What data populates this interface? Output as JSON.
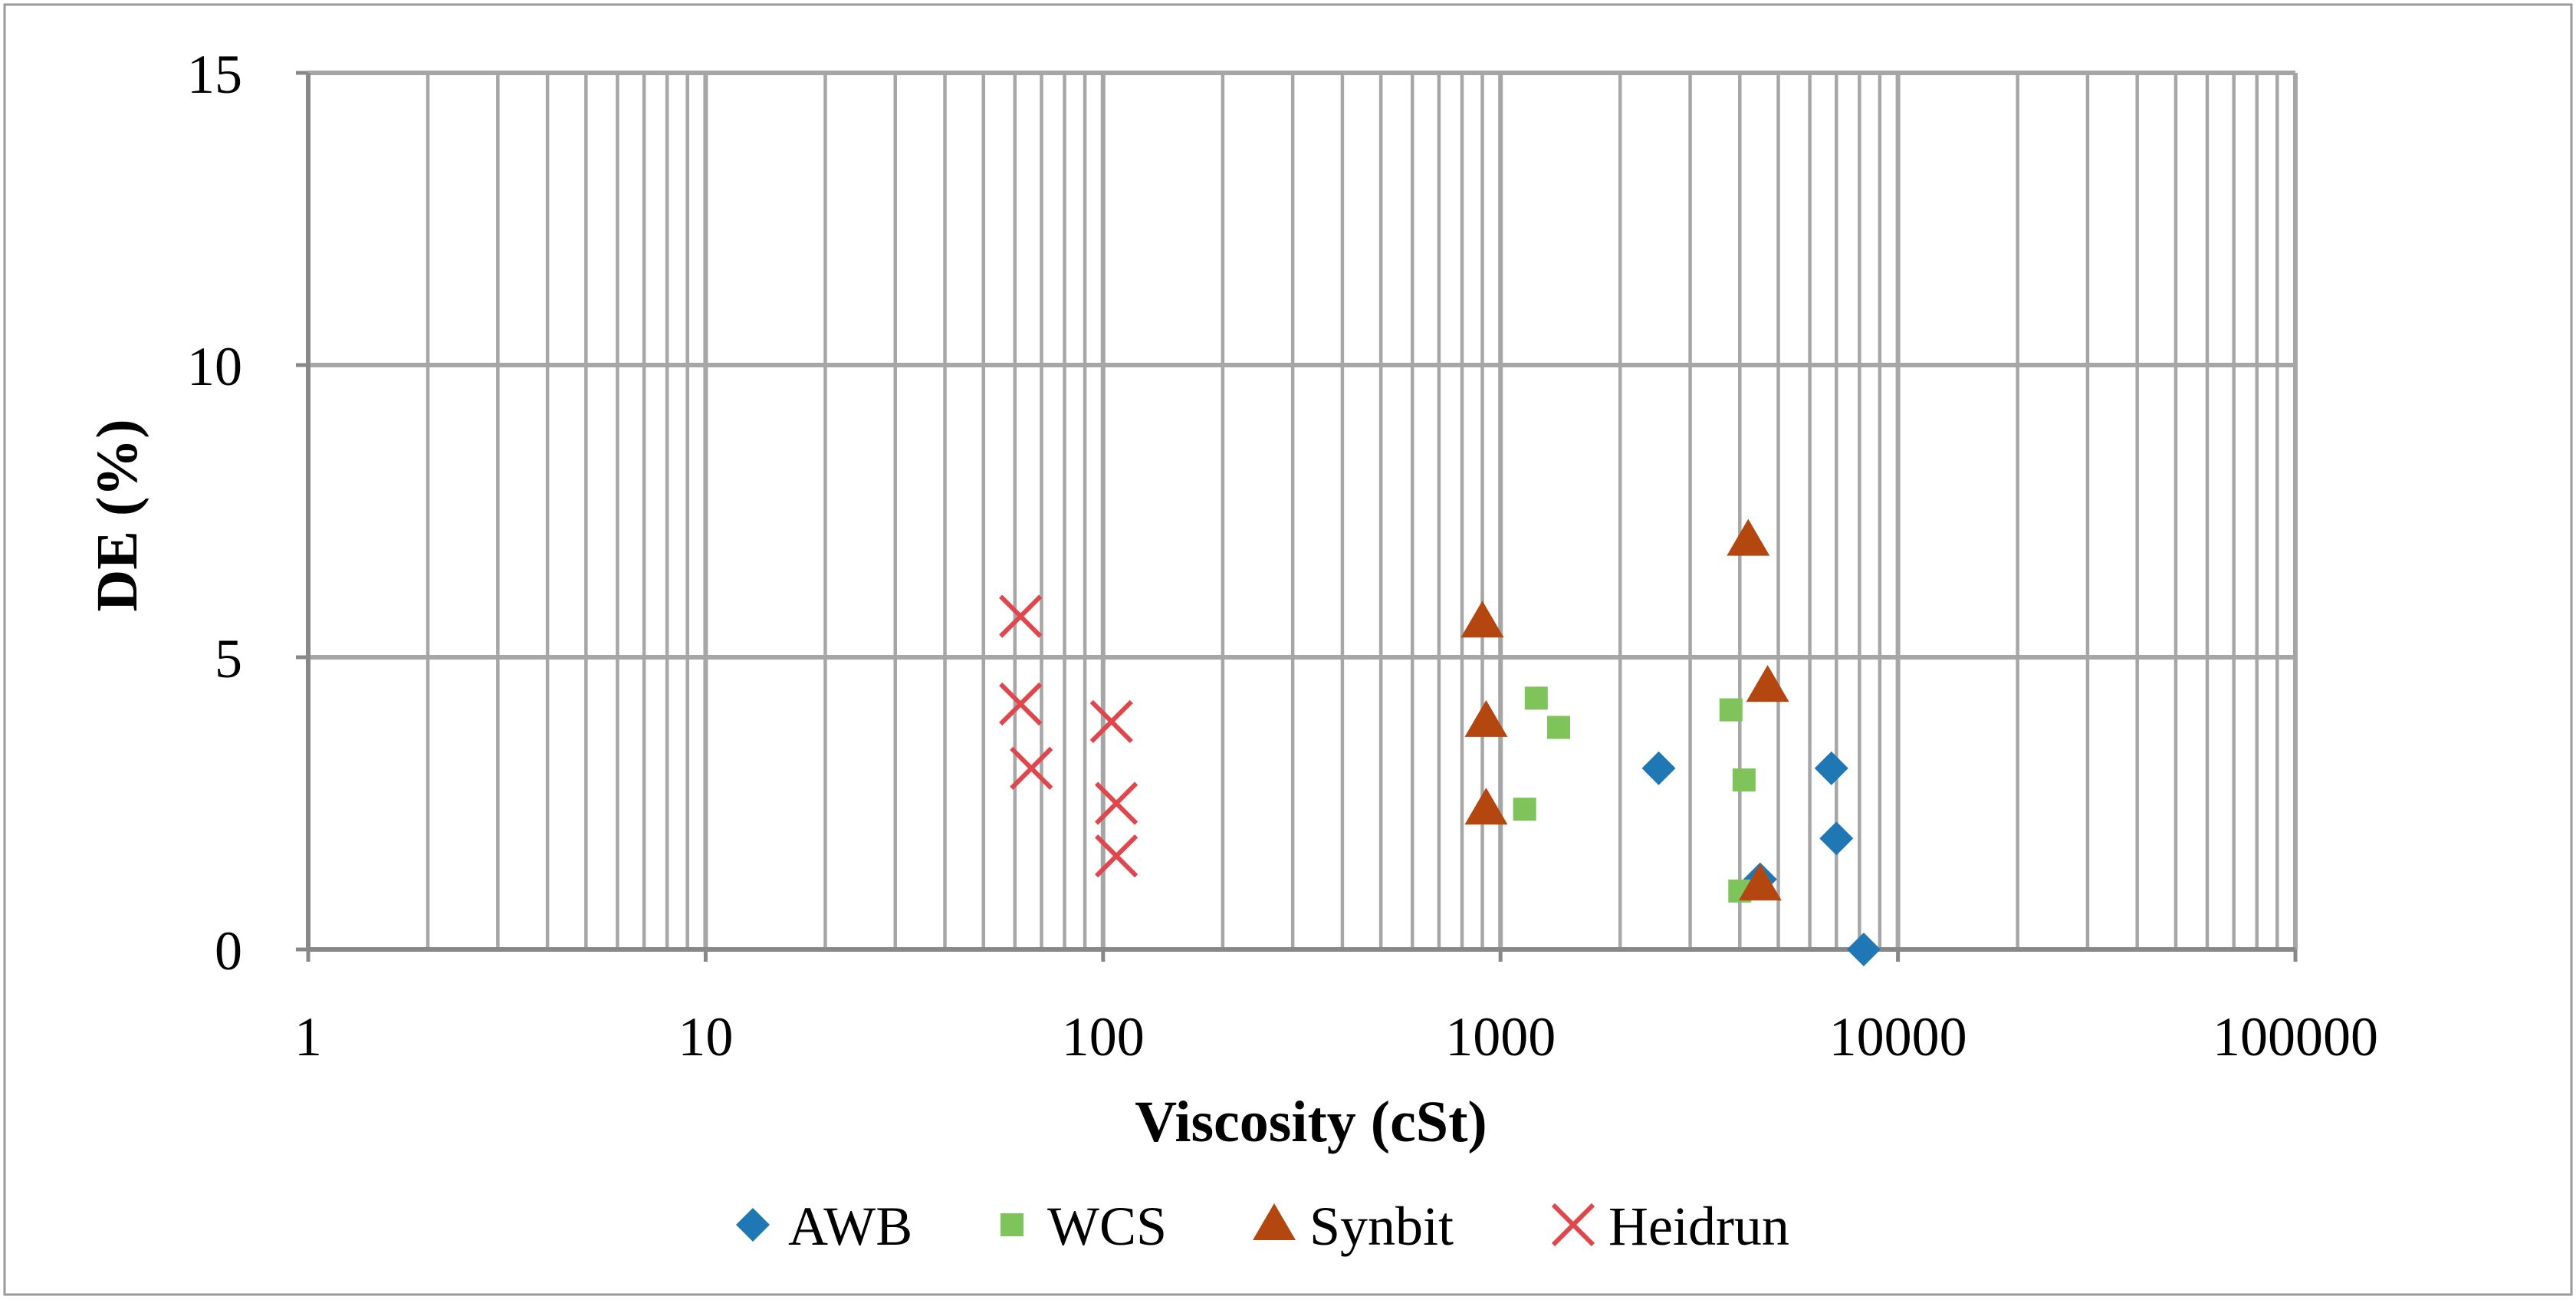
{
  "colors": {
    "AWB": "#1f77b4",
    "WCS": "#7ec45a",
    "Synbit": "#b4470f",
    "Heidrun": "#e0474c",
    "grid": "#a6a6a6",
    "axis": "#888888"
  },
  "chart_data": {
    "type": "scatter",
    "title": "",
    "xlabel": "Viscosity (cSt)",
    "ylabel": "DE (%)",
    "xscale": "log",
    "xlim": [
      1,
      100000
    ],
    "ylim": [
      0,
      15
    ],
    "x_tick_labels": [
      "1",
      "10",
      "100",
      "1000",
      "10000",
      "100000"
    ],
    "y_tick_labels": [
      "0",
      "5",
      "10",
      "15"
    ],
    "grid": true,
    "legend_position": "bottom",
    "series": [
      {
        "name": "AWB",
        "marker": "diamond",
        "points": [
          [
            2500,
            3.1
          ],
          [
            4500,
            1.2
          ],
          [
            6800,
            3.1
          ],
          [
            7000,
            1.9
          ],
          [
            8200,
            0.0
          ]
        ]
      },
      {
        "name": "WCS",
        "marker": "square",
        "points": [
          [
            1150,
            2.4
          ],
          [
            1230,
            4.3
          ],
          [
            1400,
            3.8
          ],
          [
            3800,
            4.1
          ],
          [
            4100,
            2.9
          ],
          [
            4000,
            1.0
          ]
        ]
      },
      {
        "name": "Synbit",
        "marker": "triangle",
        "points": [
          [
            900,
            5.6
          ],
          [
            920,
            3.9
          ],
          [
            920,
            2.4
          ],
          [
            4200,
            7.0
          ],
          [
            4700,
            4.5
          ],
          [
            4500,
            1.1
          ]
        ]
      },
      {
        "name": "Heidrun",
        "marker": "x",
        "points": [
          [
            62,
            5.7
          ],
          [
            62,
            4.2
          ],
          [
            66,
            3.1
          ],
          [
            105,
            3.9
          ],
          [
            108,
            2.5
          ],
          [
            108,
            1.6
          ]
        ]
      }
    ]
  }
}
